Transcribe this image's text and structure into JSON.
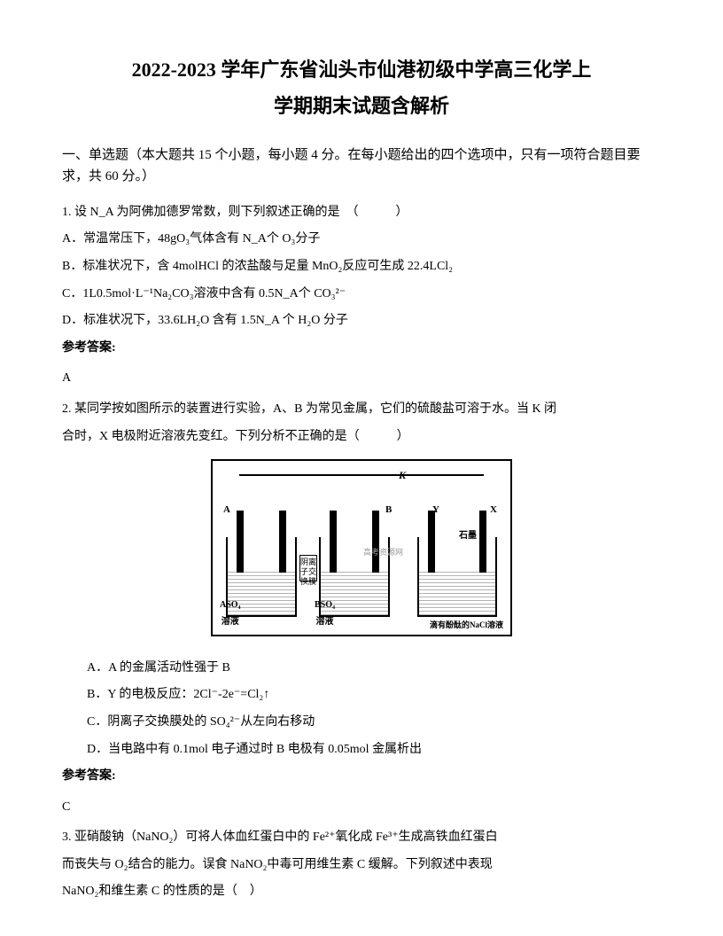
{
  "title": {
    "line1": "2022-2023 学年广东省汕头市仙港初级中学高三化学上",
    "line2": "学期期末试题含解析"
  },
  "section_header": "一、单选题（本大题共 15 个小题，每小题 4 分。在每小题给出的四个选项中，只有一项符合题目要求，共 60 分。）",
  "q1": {
    "text": "1. 设 N_A 为阿佛加德罗常数，则下列叙述正确的是　（　　　）",
    "a": "A．常温常压下，48gO₃气体含有 N_A个 O₃分子",
    "b": "B．标准状况下，含 4molHCl 的浓盐酸与足量 MnO₂反应可生成 22.4LCl₂",
    "c": "C．1L0.5mol·L⁻¹Na₂CO₃溶液中含有 0.5N_A个 CO₃²⁻",
    "d": "D．标准状况下，33.6LH₂O 含有 1.5N_A 个 H₂O 分子",
    "answer_label": "参考答案:",
    "answer": "A"
  },
  "q2": {
    "text1": "2. 某同学按如图所示的装置进行实验，A、B 为常见金属，它们的硫酸盐可溶于水。当 K 闭",
    "text2": "合时，X 电极附近溶液先变红。下列分析不正确的是（　　　）",
    "a": "A．A 的金属活动性强于 B",
    "b": "B．Y 的电极反应：2Cl⁻-2e⁻=Cl₂↑",
    "c": "C．阴离子交换膜处的 SO₄²⁻从左向右移动",
    "d": "D．当电路中有 0.1mol 电子通过时 B 电极有 0.05mol 金属析出",
    "answer_label": "参考答案:",
    "answer": "C"
  },
  "q3": {
    "text1": "3. 亚硝酸钠（NaNO₂）可将人体血红蛋白中的 Fe²⁺氧化成 Fe³⁺生成高铁血红蛋白",
    "text2": "而丧失与 O₂结合的能力。误食 NaNO₂中毒可用维生素 C 缓解。下列叙述中表现",
    "text3": "NaNO₂和维生素 C 的性质的是（　）"
  },
  "diagram": {
    "membrane_text": "阴离子交换膜",
    "k": "K",
    "a": "A",
    "b": "B",
    "y": "Y",
    "x": "X",
    "aso4_1": "ASO₄",
    "aso4_2": "溶液",
    "bso4_1": "BSO₄",
    "bso4_2": "溶液",
    "shimo": "石墨",
    "nacl": "滴有酚酞的NaCl溶液",
    "watermark": "高考资源网"
  },
  "colors": {
    "text": "#000000",
    "background": "#ffffff",
    "watermark": "#999999"
  },
  "fonts": {
    "title_size": 22,
    "body_size": 14,
    "sub_size": 10
  }
}
